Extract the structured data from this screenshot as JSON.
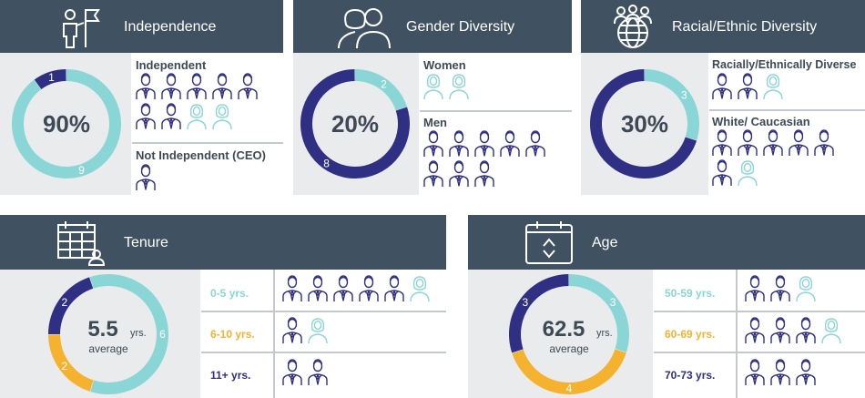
{
  "colors": {
    "header": "#405261",
    "body": "#e9ebec",
    "navy": "#2f2f83",
    "teal": "#8ad6d6",
    "gold": "#f5b22f",
    "text": "#3d4a56"
  },
  "independence": {
    "title": "Independence",
    "icon": "person-with-flag-icon",
    "center": "90%",
    "segments": [
      {
        "value": 1,
        "color": "navy",
        "label": "1"
      },
      {
        "value": 9,
        "color": "teal",
        "label": "9"
      }
    ],
    "groups": [
      {
        "label": "Independent",
        "people": [
          "man",
          "man",
          "man",
          "man",
          "man",
          "man",
          "man",
          "woman",
          "woman"
        ]
      },
      {
        "label": "Not Independent (CEO)",
        "people": [
          "man"
        ]
      }
    ]
  },
  "gender": {
    "title": "Gender Diversity",
    "icon": "man-woman-silhouette-icon",
    "center": "20%",
    "segments": [
      {
        "value": 2,
        "color": "teal",
        "label": "2"
      },
      {
        "value": 8,
        "color": "navy",
        "label": "8"
      }
    ],
    "groups": [
      {
        "label": "Women",
        "people": [
          "woman",
          "woman"
        ]
      },
      {
        "label": "Men",
        "people": [
          "man",
          "man",
          "man",
          "man",
          "man",
          "man",
          "man",
          "man"
        ]
      }
    ]
  },
  "racial": {
    "title": "Racial/Ethnic Diversity",
    "icon": "people-globe-icon",
    "center": "30%",
    "segments": [
      {
        "value": 3,
        "color": "teal",
        "label": "3"
      },
      {
        "value": 7,
        "color": "navy",
        "label": ""
      }
    ],
    "groups": [
      {
        "label": "Racially/Ethnically Diverse",
        "people": [
          "man",
          "man",
          "woman"
        ]
      },
      {
        "label": "White/ Caucasian",
        "people": [
          "man",
          "man",
          "man",
          "man",
          "man",
          "man",
          "woman"
        ]
      }
    ]
  },
  "tenure": {
    "title": "Tenure",
    "icon": "calendar-person-icon",
    "center_value": "5.5",
    "center_unit": "yrs.",
    "center_sub": "average",
    "segments": [
      {
        "value": 2,
        "color": "navy",
        "label": "2"
      },
      {
        "value": 6,
        "color": "teal",
        "label": "6"
      },
      {
        "value": 2,
        "color": "gold",
        "label": "2"
      }
    ],
    "rows": [
      {
        "label": "0-5 yrs.",
        "color": "teal",
        "people": [
          "man",
          "man",
          "man",
          "man",
          "man",
          "woman"
        ]
      },
      {
        "label": "6-10 yrs.",
        "color": "gold",
        "people": [
          "man",
          "woman"
        ]
      },
      {
        "label": "11+ yrs.",
        "color": "navy",
        "people": [
          "man",
          "man"
        ]
      }
    ]
  },
  "age": {
    "title": "Age",
    "icon": "calendar-chevrons-icon",
    "center_value": "62.5",
    "center_unit": "yrs.",
    "center_sub": "average",
    "segments": [
      {
        "value": 3,
        "color": "teal",
        "label": "3"
      },
      {
        "value": 4,
        "color": "gold",
        "label": "4"
      },
      {
        "value": 3,
        "color": "navy",
        "label": "3"
      }
    ],
    "rows": [
      {
        "label": "50-59 yrs.",
        "color": "teal",
        "people": [
          "man",
          "man",
          "woman"
        ]
      },
      {
        "label": "60-69 yrs.",
        "color": "gold",
        "people": [
          "man",
          "man",
          "man",
          "woman"
        ]
      },
      {
        "label": "70-73 yrs.",
        "color": "navy",
        "people": [
          "man",
          "man",
          "man"
        ]
      }
    ]
  }
}
